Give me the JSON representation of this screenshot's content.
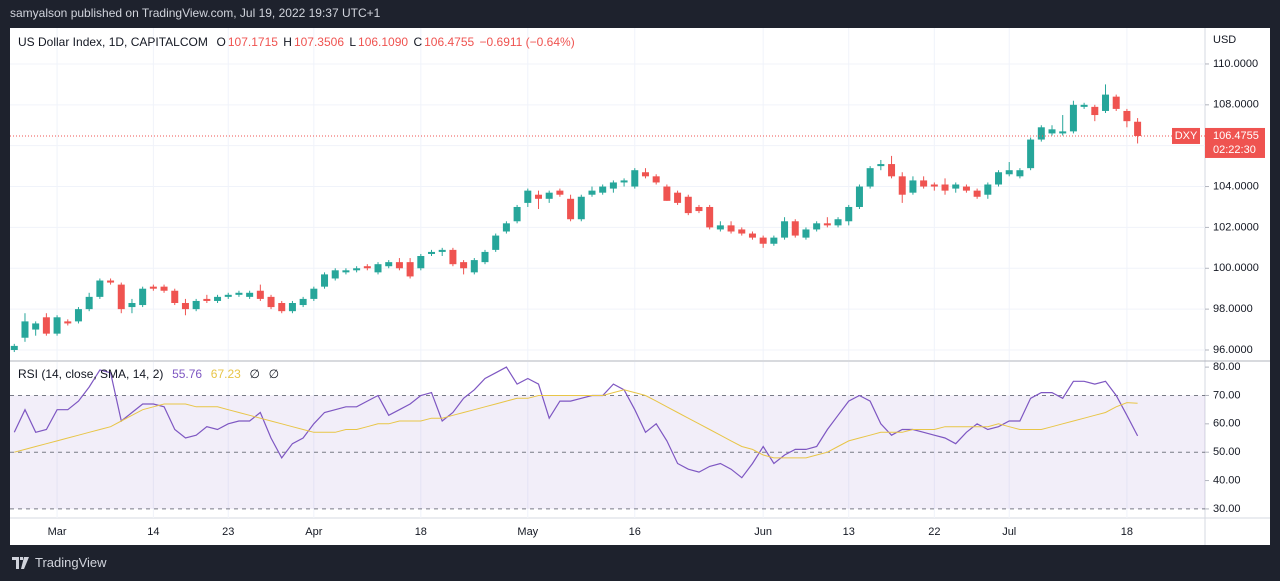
{
  "header": {
    "text": "samyalson published on TradingView.com, Jul 19, 2022 19:37 UTC+1"
  },
  "footer": {
    "brand": "TradingView"
  },
  "chart_data": [
    {
      "type": "candlestick",
      "title": "US Dollar Index, 1D, CAPITALCOM",
      "ohlc_letters": [
        "O",
        "H",
        "L",
        "C"
      ],
      "ohlc_labels": [
        "107.1715",
        "107.3506",
        "106.1090",
        "106.4755"
      ],
      "change": "−0.6911 (−0.64%)",
      "symbol": "DXY",
      "countdown": "02:22:30",
      "currency": "USD",
      "up_color": "#26a69a",
      "down_color": "#ef5350",
      "grid": true,
      "xlim": [
        -0.4,
        111.3
      ],
      "ylim": [
        95.51,
        111.76
      ],
      "yticks": [
        {
          "value": 96,
          "label": "96.0000"
        },
        {
          "value": 98,
          "label": "98.0000"
        },
        {
          "value": 100,
          "label": "100.0000"
        },
        {
          "value": 102,
          "label": "102.0000"
        },
        {
          "value": 104,
          "label": "104.0000"
        },
        {
          "value": 106,
          "label": "106.0000"
        },
        {
          "value": 108,
          "label": "108.0000"
        },
        {
          "value": 110,
          "label": "110.0000"
        }
      ],
      "candles": [
        [
          96.0,
          96.3,
          95.9,
          96.2
        ],
        [
          96.6,
          97.8,
          96.4,
          97.4
        ],
        [
          97.0,
          97.4,
          96.7,
          97.3
        ],
        [
          97.6,
          97.8,
          96.7,
          96.8
        ],
        [
          96.8,
          97.7,
          96.7,
          97.6
        ],
        [
          97.4,
          97.5,
          97.2,
          97.3
        ],
        [
          97.4,
          98.1,
          97.3,
          98.0
        ],
        [
          98.0,
          98.8,
          97.9,
          98.6
        ],
        [
          98.6,
          99.5,
          98.5,
          99.4
        ],
        [
          99.4,
          99.5,
          99.2,
          99.3
        ],
        [
          99.2,
          99.3,
          97.8,
          98.0
        ],
        [
          98.1,
          98.5,
          97.8,
          98.3
        ],
        [
          98.2,
          99.1,
          98.1,
          99.0
        ],
        [
          99.1,
          99.2,
          98.9,
          99.0
        ],
        [
          99.1,
          99.2,
          98.8,
          98.9
        ],
        [
          98.9,
          99.0,
          98.2,
          98.3
        ],
        [
          98.3,
          98.5,
          97.7,
          98.0
        ],
        [
          98.0,
          98.5,
          97.9,
          98.4
        ],
        [
          98.5,
          98.7,
          98.3,
          98.4
        ],
        [
          98.4,
          98.7,
          98.3,
          98.6
        ],
        [
          98.6,
          98.8,
          98.5,
          98.7
        ],
        [
          98.7,
          98.9,
          98.6,
          98.8
        ],
        [
          98.6,
          98.9,
          98.5,
          98.8
        ],
        [
          98.9,
          99.2,
          98.4,
          98.5
        ],
        [
          98.6,
          98.7,
          98.0,
          98.1
        ],
        [
          98.3,
          98.4,
          97.8,
          97.9
        ],
        [
          97.9,
          98.4,
          97.8,
          98.3
        ],
        [
          98.2,
          98.6,
          98.1,
          98.5
        ],
        [
          98.5,
          99.1,
          98.4,
          99.0
        ],
        [
          99.1,
          99.8,
          99.0,
          99.7
        ],
        [
          99.5,
          100.0,
          99.4,
          99.9
        ],
        [
          99.8,
          100.0,
          99.7,
          99.9
        ],
        [
          99.9,
          100.1,
          99.8,
          100.0
        ],
        [
          100.1,
          100.2,
          99.9,
          100.0
        ],
        [
          99.8,
          100.3,
          99.7,
          100.2
        ],
        [
          100.1,
          100.4,
          100.0,
          100.3
        ],
        [
          100.3,
          100.5,
          99.9,
          100.0
        ],
        [
          100.3,
          100.5,
          99.5,
          99.6
        ],
        [
          100.0,
          100.7,
          99.9,
          100.6
        ],
        [
          100.7,
          100.9,
          100.6,
          100.8
        ],
        [
          100.8,
          101.0,
          100.6,
          100.9
        ],
        [
          100.9,
          101.0,
          100.1,
          100.2
        ],
        [
          100.3,
          100.4,
          99.7,
          100.0
        ],
        [
          99.8,
          100.5,
          99.7,
          100.4
        ],
        [
          100.3,
          100.9,
          100.2,
          100.8
        ],
        [
          100.9,
          101.7,
          100.8,
          101.6
        ],
        [
          101.8,
          102.3,
          101.7,
          102.2
        ],
        [
          102.3,
          103.1,
          102.2,
          103.0
        ],
        [
          103.2,
          103.9,
          103.0,
          103.8
        ],
        [
          103.6,
          103.8,
          102.9,
          103.4
        ],
        [
          103.4,
          103.8,
          103.2,
          103.7
        ],
        [
          103.8,
          103.9,
          103.5,
          103.6
        ],
        [
          103.4,
          103.6,
          102.3,
          102.4
        ],
        [
          102.4,
          103.6,
          102.3,
          103.5
        ],
        [
          103.6,
          104.0,
          103.5,
          103.8
        ],
        [
          103.7,
          104.1,
          103.6,
          104.0
        ],
        [
          103.9,
          104.3,
          103.7,
          104.2
        ],
        [
          104.2,
          104.4,
          104.0,
          104.3
        ],
        [
          104.0,
          104.9,
          103.9,
          104.8
        ],
        [
          104.7,
          104.9,
          104.4,
          104.5
        ],
        [
          104.5,
          104.6,
          104.1,
          104.2
        ],
        [
          104.0,
          104.1,
          103.3,
          103.3
        ],
        [
          103.7,
          103.8,
          103.1,
          103.2
        ],
        [
          103.5,
          103.6,
          102.6,
          102.7
        ],
        [
          103.0,
          103.1,
          102.7,
          102.8
        ],
        [
          103.0,
          103.1,
          101.9,
          102.0
        ],
        [
          101.9,
          102.3,
          101.8,
          102.1
        ],
        [
          102.1,
          102.3,
          101.7,
          101.8
        ],
        [
          101.9,
          102.0,
          101.6,
          101.7
        ],
        [
          101.7,
          101.8,
          101.4,
          101.5
        ],
        [
          101.5,
          101.6,
          101.0,
          101.2
        ],
        [
          101.2,
          101.6,
          101.1,
          101.5
        ],
        [
          101.5,
          102.5,
          101.4,
          102.3
        ],
        [
          102.3,
          102.4,
          101.5,
          101.6
        ],
        [
          101.5,
          102.0,
          101.4,
          101.9
        ],
        [
          101.9,
          102.3,
          101.8,
          102.2
        ],
        [
          102.2,
          102.5,
          102.0,
          102.1
        ],
        [
          102.1,
          102.5,
          102.0,
          102.4
        ],
        [
          102.3,
          103.1,
          102.1,
          103.0
        ],
        [
          103.0,
          104.1,
          102.9,
          104.0
        ],
        [
          104.0,
          105.0,
          103.9,
          104.9
        ],
        [
          105.0,
          105.3,
          104.8,
          105.1
        ],
        [
          105.1,
          105.5,
          104.4,
          104.5
        ],
        [
          104.5,
          104.7,
          103.2,
          103.6
        ],
        [
          103.7,
          104.5,
          103.6,
          104.3
        ],
        [
          104.3,
          104.5,
          103.9,
          104.0
        ],
        [
          104.1,
          104.2,
          103.8,
          104.0
        ],
        [
          104.1,
          104.4,
          103.6,
          103.8
        ],
        [
          103.9,
          104.2,
          103.7,
          104.1
        ],
        [
          104.0,
          104.1,
          103.7,
          103.8
        ],
        [
          103.8,
          103.9,
          103.4,
          103.5
        ],
        [
          103.6,
          104.2,
          103.4,
          104.1
        ],
        [
          104.1,
          104.8,
          104.0,
          104.7
        ],
        [
          104.6,
          105.2,
          104.5,
          104.8
        ],
        [
          104.5,
          104.9,
          104.4,
          104.8
        ],
        [
          104.9,
          106.4,
          104.8,
          106.3
        ],
        [
          106.3,
          107.0,
          106.2,
          106.9
        ],
        [
          106.6,
          107.0,
          106.5,
          106.8
        ],
        [
          106.6,
          107.5,
          106.5,
          106.7
        ],
        [
          106.7,
          108.2,
          106.6,
          108.0
        ],
        [
          107.9,
          108.1,
          107.8,
          108.0
        ],
        [
          107.9,
          108.0,
          107.2,
          107.5
        ],
        [
          107.7,
          109.0,
          107.6,
          108.5
        ],
        [
          108.4,
          108.5,
          107.7,
          107.8
        ],
        [
          107.7,
          107.8,
          106.9,
          107.2
        ],
        [
          107.1715,
          107.3506,
          106.109,
          106.4755
        ]
      ]
    },
    {
      "type": "line",
      "title": "RSI (14, close, SMA, 14, 2)",
      "flags": [
        "∅",
        "∅"
      ],
      "xlim": [
        -0.4,
        111.3
      ],
      "ylim": [
        26.8,
        81.8
      ],
      "xticks": [
        {
          "value": 4,
          "label": "Mar"
        },
        {
          "value": 13,
          "label": "14"
        },
        {
          "value": 20,
          "label": "23"
        },
        {
          "value": 28,
          "label": "Apr"
        },
        {
          "value": 38,
          "label": "18"
        },
        {
          "value": 48,
          "label": "May"
        },
        {
          "value": 58,
          "label": "16"
        },
        {
          "value": 70,
          "label": "Jun"
        },
        {
          "value": 78,
          "label": "13"
        },
        {
          "value": 86,
          "label": "22"
        },
        {
          "value": 93,
          "label": "Jul"
        },
        {
          "value": 104,
          "label": "18"
        }
      ],
      "yticks": [
        {
          "value": 30,
          "label": "30.00"
        },
        {
          "value": 40,
          "label": "40.00"
        },
        {
          "value": 50,
          "label": "50.00"
        },
        {
          "value": 60,
          "label": "60.00"
        },
        {
          "value": 70,
          "label": "70.00"
        },
        {
          "value": 80,
          "label": "80.00"
        }
      ],
      "band": [
        30,
        70
      ],
      "midline": 50,
      "band_color": "#7e57c2",
      "series": [
        {
          "color": "#7e57c2",
          "values": [
            57,
            65,
            57,
            58,
            65,
            65,
            68,
            73,
            79,
            78,
            61,
            64,
            67,
            67,
            66,
            58,
            55,
            56,
            59,
            58,
            60,
            61,
            61,
            64,
            55,
            48,
            53,
            55,
            60,
            64,
            65,
            66,
            66,
            68,
            70,
            63,
            65,
            67,
            70,
            71,
            61,
            64,
            69,
            72,
            76,
            78,
            80,
            74,
            76,
            74,
            62,
            68,
            68,
            69,
            70,
            70,
            74,
            72,
            65,
            57,
            60,
            54,
            46,
            44,
            43,
            45,
            46,
            44,
            41,
            46,
            52,
            46,
            49,
            51,
            51,
            52,
            58,
            63,
            68,
            70,
            68,
            60,
            56,
            58,
            58,
            57,
            56,
            55,
            53,
            57,
            60,
            58,
            59,
            61,
            61,
            69,
            71,
            71,
            69,
            75,
            75,
            74,
            75,
            70,
            63,
            55.76
          ]
        },
        {
          "color": "#e8c547",
          "values": [
            50,
            51,
            52,
            53,
            54,
            55,
            56,
            57,
            58,
            59,
            61,
            63,
            65,
            66,
            67,
            67,
            67,
            66,
            66,
            66,
            65,
            64,
            63,
            62,
            61,
            60,
            59,
            58,
            57,
            57,
            57,
            58,
            58,
            59,
            60,
            60,
            61,
            61,
            61,
            62,
            62,
            63,
            64,
            65,
            66,
            67,
            68,
            69,
            69,
            70,
            70,
            70,
            70,
            70,
            70,
            70,
            71,
            72,
            71,
            70,
            68,
            66,
            64,
            62,
            60,
            58,
            56,
            54,
            52,
            51,
            49,
            48,
            48,
            48,
            48,
            49,
            50,
            52,
            54,
            55,
            56,
            57,
            57,
            57,
            58,
            58,
            58,
            59,
            59,
            59,
            59,
            59,
            60,
            59,
            58,
            58,
            58,
            59,
            60,
            61,
            62,
            63,
            64,
            66,
            67.5,
            67.23
          ]
        }
      ]
    }
  ]
}
